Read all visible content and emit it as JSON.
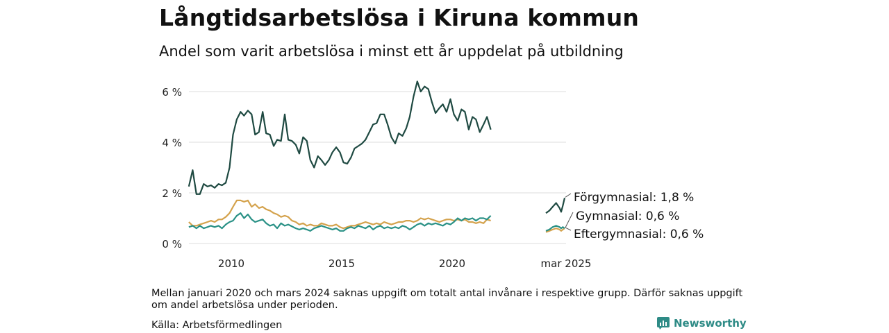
{
  "header": {
    "title": "Långtidsarbetslösa i Kiruna kommun",
    "subtitle": "Andel som varit arbetslösa i minst ett år uppdelat på utbildning"
  },
  "footer": {
    "note": "Mellan januari 2020 och mars 2024 saknas uppgift om totalt antal invånare i respektive grupp. Därför saknas uppgift om andel arbetslösa under perioden.",
    "source": "Källa: Arbetsförmedlingen",
    "brand": "Newsworthy"
  },
  "colors": {
    "forgymnasial": "#1f4a42",
    "gymnasial": "#2a9186",
    "eftergymnasial": "#d4a24c",
    "grid": "#dddddd",
    "brand": "#2e8b86"
  },
  "chart_data": {
    "type": "line",
    "title": "Långtidsarbetslösa i Kiruna kommun",
    "subtitle": "Andel som varit arbetslösa i minst ett år uppdelat på utbildning",
    "xlabel": "",
    "ylabel": "",
    "ylim": [
      0,
      6.5
    ],
    "yticks": [
      0,
      2,
      4,
      6
    ],
    "ytick_labels": [
      "0 %",
      "2 %",
      "4 %",
      "6 %"
    ],
    "xtick_labels": [
      {
        "x": 2010,
        "label": "2010"
      },
      {
        "x": 2015,
        "label": "2015"
      },
      {
        "x": 2020,
        "label": "2020"
      },
      {
        "x": "2025-03",
        "label": "mar 2025"
      }
    ],
    "grid": true,
    "legend": "direct labels at right end",
    "series": [
      {
        "name": "Förgymnasial",
        "end_label": "Förgymnasial: 1,8 %",
        "color_key": "forgymnasial",
        "points": [
          [
            2008.08,
            2.25
          ],
          [
            2008.25,
            2.9
          ],
          [
            2008.42,
            1.95
          ],
          [
            2008.58,
            1.95
          ],
          [
            2008.75,
            2.35
          ],
          [
            2008.92,
            2.25
          ],
          [
            2009.08,
            2.3
          ],
          [
            2009.25,
            2.2
          ],
          [
            2009.42,
            2.35
          ],
          [
            2009.58,
            2.3
          ],
          [
            2009.75,
            2.4
          ],
          [
            2009.92,
            3.0
          ],
          [
            2010.08,
            4.3
          ],
          [
            2010.25,
            4.9
          ],
          [
            2010.42,
            5.2
          ],
          [
            2010.58,
            5.05
          ],
          [
            2010.75,
            5.25
          ],
          [
            2010.92,
            5.1
          ],
          [
            2011.08,
            4.3
          ],
          [
            2011.25,
            4.4
          ],
          [
            2011.42,
            5.2
          ],
          [
            2011.58,
            4.35
          ],
          [
            2011.75,
            4.3
          ],
          [
            2011.92,
            3.85
          ],
          [
            2012.08,
            4.1
          ],
          [
            2012.25,
            4.05
          ],
          [
            2012.42,
            5.1
          ],
          [
            2012.58,
            4.1
          ],
          [
            2012.75,
            4.05
          ],
          [
            2012.92,
            3.9
          ],
          [
            2013.08,
            3.55
          ],
          [
            2013.25,
            4.2
          ],
          [
            2013.42,
            4.05
          ],
          [
            2013.58,
            3.3
          ],
          [
            2013.75,
            3.0
          ],
          [
            2013.92,
            3.45
          ],
          [
            2014.08,
            3.3
          ],
          [
            2014.25,
            3.1
          ],
          [
            2014.42,
            3.3
          ],
          [
            2014.58,
            3.6
          ],
          [
            2014.75,
            3.8
          ],
          [
            2014.92,
            3.6
          ],
          [
            2015.08,
            3.2
          ],
          [
            2015.25,
            3.15
          ],
          [
            2015.42,
            3.4
          ],
          [
            2015.58,
            3.75
          ],
          [
            2015.75,
            3.85
          ],
          [
            2015.92,
            3.95
          ],
          [
            2016.08,
            4.1
          ],
          [
            2016.25,
            4.4
          ],
          [
            2016.42,
            4.7
          ],
          [
            2016.58,
            4.75
          ],
          [
            2016.75,
            5.1
          ],
          [
            2016.92,
            5.1
          ],
          [
            2017.08,
            4.7
          ],
          [
            2017.25,
            4.2
          ],
          [
            2017.42,
            3.95
          ],
          [
            2017.58,
            4.35
          ],
          [
            2017.75,
            4.25
          ],
          [
            2017.92,
            4.55
          ],
          [
            2018.08,
            5.0
          ],
          [
            2018.25,
            5.8
          ],
          [
            2018.42,
            6.4
          ],
          [
            2018.58,
            6.0
          ],
          [
            2018.75,
            6.2
          ],
          [
            2018.92,
            6.1
          ],
          [
            2019.08,
            5.6
          ],
          [
            2019.25,
            5.15
          ],
          [
            2019.42,
            5.35
          ],
          [
            2019.58,
            5.5
          ],
          [
            2019.75,
            5.2
          ],
          [
            2019.92,
            5.7
          ],
          [
            2020.08,
            5.1
          ],
          [
            2020.25,
            4.85
          ],
          [
            2020.42,
            5.3
          ],
          [
            2020.58,
            5.2
          ],
          [
            2020.75,
            4.5
          ],
          [
            2020.92,
            5.0
          ],
          [
            2021.08,
            4.9
          ],
          [
            2021.25,
            4.4
          ],
          [
            2021.42,
            4.7
          ],
          [
            2021.58,
            5.0
          ],
          [
            2021.75,
            4.5
          ]
        ],
        "tail": [
          [
            2024.25,
            1.2
          ],
          [
            2024.42,
            1.3
          ],
          [
            2024.58,
            1.45
          ],
          [
            2024.75,
            1.6
          ],
          [
            2024.92,
            1.4
          ],
          [
            2025.0,
            1.25
          ],
          [
            2025.08,
            1.5
          ],
          [
            2025.17,
            1.8
          ]
        ]
      },
      {
        "name": "Gymnasial",
        "end_label": "Gymnasial: 0,6 %",
        "color_key": "gymnasial",
        "points": [
          [
            2008.08,
            0.65
          ],
          [
            2008.25,
            0.7
          ],
          [
            2008.42,
            0.6
          ],
          [
            2008.58,
            0.7
          ],
          [
            2008.75,
            0.6
          ],
          [
            2008.92,
            0.65
          ],
          [
            2009.08,
            0.7
          ],
          [
            2009.25,
            0.65
          ],
          [
            2009.42,
            0.7
          ],
          [
            2009.58,
            0.6
          ],
          [
            2009.75,
            0.75
          ],
          [
            2009.92,
            0.85
          ],
          [
            2010.08,
            0.9
          ],
          [
            2010.25,
            1.1
          ],
          [
            2010.42,
            1.2
          ],
          [
            2010.58,
            1.0
          ],
          [
            2010.75,
            1.15
          ],
          [
            2010.92,
            0.95
          ],
          [
            2011.08,
            0.85
          ],
          [
            2011.25,
            0.9
          ],
          [
            2011.42,
            0.95
          ],
          [
            2011.58,
            0.8
          ],
          [
            2011.75,
            0.7
          ],
          [
            2011.92,
            0.75
          ],
          [
            2012.08,
            0.6
          ],
          [
            2012.25,
            0.8
          ],
          [
            2012.42,
            0.7
          ],
          [
            2012.58,
            0.75
          ],
          [
            2012.92,
            0.6
          ],
          [
            2013.08,
            0.55
          ],
          [
            2013.25,
            0.6
          ],
          [
            2013.42,
            0.55
          ],
          [
            2013.58,
            0.5
          ],
          [
            2013.75,
            0.6
          ],
          [
            2013.92,
            0.65
          ],
          [
            2014.08,
            0.7
          ],
          [
            2014.25,
            0.65
          ],
          [
            2014.42,
            0.6
          ],
          [
            2014.58,
            0.55
          ],
          [
            2014.75,
            0.6
          ],
          [
            2014.92,
            0.5
          ],
          [
            2015.08,
            0.5
          ],
          [
            2015.25,
            0.6
          ],
          [
            2015.42,
            0.65
          ],
          [
            2015.58,
            0.6
          ],
          [
            2015.75,
            0.7
          ],
          [
            2015.92,
            0.65
          ],
          [
            2016.08,
            0.6
          ],
          [
            2016.25,
            0.7
          ],
          [
            2016.42,
            0.55
          ],
          [
            2016.58,
            0.65
          ],
          [
            2016.75,
            0.7
          ],
          [
            2016.92,
            0.6
          ],
          [
            2017.08,
            0.65
          ],
          [
            2017.25,
            0.6
          ],
          [
            2017.42,
            0.65
          ],
          [
            2017.58,
            0.6
          ],
          [
            2017.75,
            0.7
          ],
          [
            2017.92,
            0.65
          ],
          [
            2018.08,
            0.55
          ],
          [
            2018.25,
            0.65
          ],
          [
            2018.42,
            0.75
          ],
          [
            2018.58,
            0.8
          ],
          [
            2018.75,
            0.7
          ],
          [
            2018.92,
            0.8
          ],
          [
            2019.08,
            0.75
          ],
          [
            2019.25,
            0.8
          ],
          [
            2019.42,
            0.75
          ],
          [
            2019.58,
            0.7
          ],
          [
            2019.75,
            0.8
          ],
          [
            2019.92,
            0.75
          ],
          [
            2020.08,
            0.85
          ],
          [
            2020.25,
            1.0
          ],
          [
            2020.42,
            0.9
          ],
          [
            2020.58,
            1.0
          ],
          [
            2020.75,
            0.95
          ],
          [
            2020.92,
            1.0
          ],
          [
            2021.08,
            0.9
          ],
          [
            2021.25,
            1.0
          ],
          [
            2021.42,
            1.0
          ],
          [
            2021.58,
            0.95
          ],
          [
            2021.75,
            1.1
          ]
        ],
        "tail": [
          [
            2024.25,
            0.5
          ],
          [
            2024.42,
            0.55
          ],
          [
            2024.58,
            0.65
          ],
          [
            2024.75,
            0.7
          ],
          [
            2024.92,
            0.65
          ],
          [
            2025.0,
            0.6
          ],
          [
            2025.08,
            0.65
          ],
          [
            2025.17,
            0.6
          ]
        ]
      },
      {
        "name": "Eftergymnasial",
        "end_label": "Eftergymnasial: 0,6 %",
        "color_key": "eftergymnasial",
        "points": [
          [
            2008.08,
            0.85
          ],
          [
            2008.25,
            0.7
          ],
          [
            2008.42,
            0.7
          ],
          [
            2008.58,
            0.75
          ],
          [
            2008.75,
            0.8
          ],
          [
            2008.92,
            0.85
          ],
          [
            2009.08,
            0.9
          ],
          [
            2009.25,
            0.85
          ],
          [
            2009.42,
            0.95
          ],
          [
            2009.58,
            0.95
          ],
          [
            2009.75,
            1.05
          ],
          [
            2009.92,
            1.2
          ],
          [
            2010.08,
            1.45
          ],
          [
            2010.25,
            1.7
          ],
          [
            2010.42,
            1.7
          ],
          [
            2010.58,
            1.65
          ],
          [
            2010.75,
            1.7
          ],
          [
            2010.92,
            1.45
          ],
          [
            2011.08,
            1.55
          ],
          [
            2011.25,
            1.4
          ],
          [
            2011.42,
            1.45
          ],
          [
            2011.58,
            1.35
          ],
          [
            2011.75,
            1.3
          ],
          [
            2011.92,
            1.2
          ],
          [
            2012.08,
            1.15
          ],
          [
            2012.25,
            1.05
          ],
          [
            2012.42,
            1.1
          ],
          [
            2012.58,
            1.05
          ],
          [
            2012.75,
            0.9
          ],
          [
            2012.92,
            0.85
          ],
          [
            2013.08,
            0.75
          ],
          [
            2013.25,
            0.8
          ],
          [
            2013.42,
            0.7
          ],
          [
            2013.58,
            0.75
          ],
          [
            2013.75,
            0.7
          ],
          [
            2013.92,
            0.7
          ],
          [
            2014.08,
            0.8
          ],
          [
            2014.25,
            0.75
          ],
          [
            2014.42,
            0.7
          ],
          [
            2014.58,
            0.7
          ],
          [
            2014.75,
            0.75
          ],
          [
            2014.92,
            0.65
          ],
          [
            2015.08,
            0.6
          ],
          [
            2015.25,
            0.65
          ],
          [
            2015.42,
            0.7
          ],
          [
            2015.58,
            0.7
          ],
          [
            2015.75,
            0.75
          ],
          [
            2015.92,
            0.8
          ],
          [
            2016.08,
            0.85
          ],
          [
            2016.25,
            0.8
          ],
          [
            2016.42,
            0.75
          ],
          [
            2016.58,
            0.8
          ],
          [
            2016.75,
            0.75
          ],
          [
            2016.92,
            0.85
          ],
          [
            2017.08,
            0.8
          ],
          [
            2017.25,
            0.75
          ],
          [
            2017.42,
            0.8
          ],
          [
            2017.58,
            0.85
          ],
          [
            2017.75,
            0.85
          ],
          [
            2017.92,
            0.9
          ],
          [
            2018.08,
            0.9
          ],
          [
            2018.25,
            0.85
          ],
          [
            2018.42,
            0.9
          ],
          [
            2018.58,
            1.0
          ],
          [
            2018.75,
            0.95
          ],
          [
            2018.92,
            1.0
          ],
          [
            2019.08,
            0.95
          ],
          [
            2019.25,
            0.9
          ],
          [
            2019.42,
            0.85
          ],
          [
            2019.58,
            0.9
          ],
          [
            2019.75,
            0.95
          ],
          [
            2019.92,
            0.95
          ],
          [
            2020.08,
            0.9
          ],
          [
            2020.25,
            0.95
          ],
          [
            2020.42,
            0.9
          ],
          [
            2020.58,
            0.95
          ],
          [
            2020.75,
            0.85
          ],
          [
            2020.92,
            0.85
          ],
          [
            2021.08,
            0.8
          ],
          [
            2021.25,
            0.85
          ],
          [
            2021.42,
            0.8
          ],
          [
            2021.58,
            0.95
          ],
          [
            2021.75,
            0.9
          ]
        ],
        "tail": [
          [
            2024.25,
            0.45
          ],
          [
            2024.42,
            0.5
          ],
          [
            2024.58,
            0.55
          ],
          [
            2024.75,
            0.6
          ],
          [
            2024.92,
            0.55
          ],
          [
            2025.0,
            0.5
          ],
          [
            2025.08,
            0.55
          ],
          [
            2025.17,
            0.6
          ]
        ]
      }
    ]
  }
}
